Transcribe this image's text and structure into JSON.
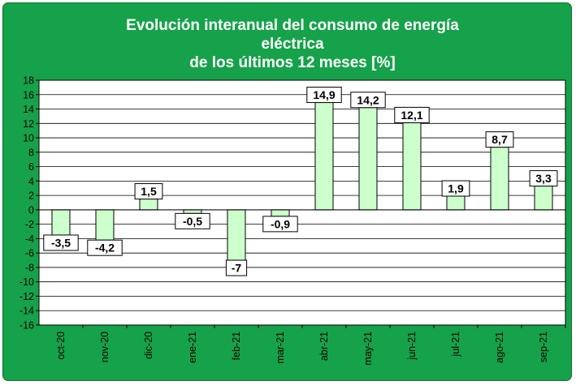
{
  "chart_data": {
    "type": "bar",
    "title": "Evolución interanual del consumo de energía\neléctrica\nde los últimos 12 meses [%]",
    "xlabel": "",
    "ylabel": "",
    "categories": [
      "oct-20",
      "nov-20",
      "dic-20",
      "ene-21",
      "feb-21",
      "mar-21",
      "abr-21",
      "may-21",
      "jun-21",
      "jul-21",
      "ago-21",
      "sep-21"
    ],
    "values": [
      -3.5,
      -4.2,
      1.5,
      -0.5,
      -7,
      -0.9,
      14.9,
      14.2,
      12.1,
      1.9,
      8.7,
      3.3
    ],
    "data_labels": [
      "-3,5",
      "-4,2",
      "1,5",
      "-0,5",
      "-7",
      "-0,9",
      "14,9",
      "14,2",
      "12,1",
      "1,9",
      "8,7",
      "3,3"
    ],
    "ylim": [
      -16,
      18
    ],
    "yticks": [
      "18",
      "16",
      "14",
      "12",
      "10",
      "8",
      "6",
      "4",
      "2",
      "0",
      "-2",
      "-4",
      "-6",
      "-8",
      "-10",
      "-12",
      "-14",
      "-16"
    ],
    "grid": true,
    "legend": "none",
    "colors": {
      "background": "#16a24a",
      "plot_area": "#ffffff",
      "bar_fill": "#ccffcc",
      "title_text": "#ffffff"
    }
  }
}
